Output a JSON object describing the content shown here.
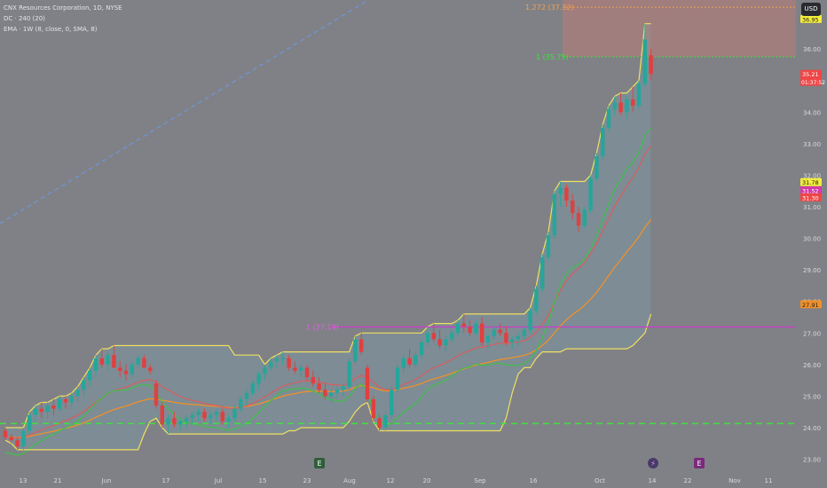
{
  "header": {
    "symbol_line": "CNX Resources Corporation, 1D, NYSE",
    "indicator_1": "DC · 240 (20)",
    "indicator_2": "EMA · 1W (8, close, 0, SMA, 8)"
  },
  "currency_button": "USD",
  "colors": {
    "background": "#808186",
    "up_candle": "#26a69a",
    "down_candle": "#e0403f",
    "donchian_band": "#f0e060",
    "ema_red": "#e05a5a",
    "ema_green": "#3fc14a",
    "ema_orange": "#f0902a",
    "resistance_line": "#cc3ccc",
    "support_line": "#3fe03f",
    "trend_line": "#6d95d8",
    "fib_line": "#f0a050",
    "target_line": "#3fe03f"
  },
  "chart_data": {
    "type": "candlestick",
    "x_tick_labels": [
      "13",
      "21",
      "Jun",
      "17",
      "Jul",
      "15",
      "23",
      "Aug",
      "12",
      "20",
      "Sep",
      "16",
      "Oct",
      "14",
      "22",
      "Nov",
      "11"
    ],
    "y_tick_labels": [
      "23.00",
      "24.00",
      "25.00",
      "26.00",
      "27.00",
      "28.00",
      "29.00",
      "30.00",
      "31.00",
      "32.00",
      "33.00",
      "34.00",
      "35.00",
      "36.00"
    ],
    "ylim": [
      22.65,
      37.55
    ],
    "price_labels": [
      {
        "value": 36.95,
        "text": "36.95",
        "bg": "#f2ec3c",
        "fg": "#1f1f1f"
      },
      {
        "value": 35.21,
        "text": "35.21",
        "sub": "01:37:52",
        "bg": "#ef4646",
        "fg": "#ffffff"
      },
      {
        "value": 31.78,
        "text": "31.78",
        "bg": "#f2ec3c",
        "fg": "#1f1f1f"
      },
      {
        "value": 31.52,
        "text": "31.52",
        "bg": "#d23aa8",
        "fg": "#ffffff"
      },
      {
        "value": 31.3,
        "text": "31.30",
        "bg": "#ef4646",
        "fg": "#ffffff"
      },
      {
        "value": 27.91,
        "text": "27.91",
        "bg": "#f0902a",
        "fg": "#1f1f1f"
      }
    ],
    "annotations": [
      {
        "text": "1.272 (37.32)",
        "value": 37.32
      },
      {
        "text": "1 (35.75)",
        "value": 35.75
      },
      {
        "text": "1 (27.19)",
        "value": 27.19
      }
    ],
    "levels": {
      "fib_1272": 37.32,
      "target": 35.75,
      "resistance": 27.19,
      "support": 24.13
    },
    "event_markers": [
      "E",
      "⚡",
      "E"
    ],
    "candles": [
      [
        23.9,
        24.0,
        23.6,
        23.7
      ],
      [
        23.7,
        23.8,
        23.5,
        23.6
      ],
      [
        23.6,
        23.7,
        23.3,
        23.4
      ],
      [
        23.4,
        24.0,
        23.3,
        23.9
      ],
      [
        23.9,
        24.5,
        23.8,
        24.4
      ],
      [
        24.4,
        24.7,
        24.2,
        24.6
      ],
      [
        24.6,
        24.8,
        24.3,
        24.5
      ],
      [
        24.5,
        24.8,
        24.3,
        24.7
      ],
      [
        24.7,
        24.9,
        24.4,
        24.6
      ],
      [
        24.6,
        25.0,
        24.5,
        24.9
      ],
      [
        24.9,
        25.0,
        24.6,
        24.8
      ],
      [
        24.8,
        25.1,
        24.6,
        25.0
      ],
      [
        25.0,
        25.3,
        24.8,
        25.2
      ],
      [
        25.2,
        25.6,
        25.0,
        25.5
      ],
      [
        25.5,
        25.9,
        25.3,
        25.8
      ],
      [
        25.8,
        26.3,
        25.6,
        26.2
      ],
      [
        26.2,
        26.5,
        25.9,
        26.0
      ],
      [
        26.0,
        26.4,
        25.8,
        26.3
      ],
      [
        26.3,
        26.6,
        26.0,
        25.9
      ],
      [
        25.9,
        26.1,
        25.6,
        25.8
      ],
      [
        25.8,
        26.0,
        25.5,
        25.7
      ],
      [
        25.7,
        26.1,
        25.6,
        26.0
      ],
      [
        26.0,
        26.3,
        25.9,
        26.2
      ],
      [
        26.2,
        26.3,
        25.9,
        25.9
      ],
      [
        25.9,
        26.0,
        25.7,
        25.8
      ],
      [
        25.4,
        25.5,
        24.6,
        24.7
      ],
      [
        24.7,
        24.8,
        24.0,
        24.1
      ],
      [
        24.1,
        24.4,
        23.8,
        24.3
      ],
      [
        24.3,
        24.5,
        24.0,
        24.1
      ],
      [
        24.1,
        24.3,
        23.9,
        24.2
      ],
      [
        24.2,
        24.4,
        24.0,
        24.3
      ],
      [
        24.3,
        24.5,
        24.1,
        24.4
      ],
      [
        24.4,
        24.6,
        24.2,
        24.5
      ],
      [
        24.5,
        24.6,
        24.2,
        24.3
      ],
      [
        24.3,
        24.5,
        24.1,
        24.4
      ],
      [
        24.4,
        24.6,
        24.2,
        24.5
      ],
      [
        24.5,
        24.6,
        24.1,
        24.2
      ],
      [
        24.2,
        24.4,
        24.0,
        24.3
      ],
      [
        24.3,
        24.7,
        24.2,
        24.6
      ],
      [
        24.6,
        25.0,
        24.5,
        24.9
      ],
      [
        24.9,
        25.2,
        24.7,
        25.1
      ],
      [
        25.1,
        25.5,
        25.0,
        25.4
      ],
      [
        25.4,
        25.8,
        25.2,
        25.7
      ],
      [
        25.7,
        26.0,
        25.5,
        25.9
      ],
      [
        25.9,
        26.2,
        25.8,
        26.1
      ],
      [
        26.1,
        26.3,
        25.9,
        26.2
      ],
      [
        26.2,
        26.4,
        26.0,
        26.2
      ],
      [
        26.2,
        26.3,
        25.8,
        25.9
      ],
      [
        25.9,
        26.1,
        25.7,
        25.8
      ],
      [
        25.8,
        26.0,
        25.6,
        25.9
      ],
      [
        25.9,
        26.0,
        25.5,
        25.6
      ],
      [
        25.6,
        25.8,
        25.3,
        25.4
      ],
      [
        25.4,
        25.6,
        25.1,
        25.2
      ],
      [
        25.2,
        25.4,
        24.9,
        25.0
      ],
      [
        25.0,
        25.2,
        24.8,
        25.1
      ],
      [
        25.1,
        25.3,
        24.9,
        25.2
      ],
      [
        25.2,
        25.4,
        25.0,
        25.3
      ],
      [
        25.3,
        26.2,
        25.2,
        26.1
      ],
      [
        26.1,
        26.9,
        26.0,
        26.8
      ],
      [
        26.8,
        27.0,
        26.3,
        26.4
      ],
      [
        25.9,
        26.0,
        24.8,
        24.9
      ],
      [
        24.9,
        25.0,
        24.2,
        24.3
      ],
      [
        24.3,
        24.4,
        23.9,
        24.0
      ],
      [
        24.0,
        24.5,
        23.9,
        24.4
      ],
      [
        24.4,
        25.3,
        24.3,
        25.2
      ],
      [
        25.2,
        26.0,
        25.1,
        25.9
      ],
      [
        25.9,
        26.3,
        25.7,
        26.2
      ],
      [
        26.2,
        26.5,
        25.9,
        26.0
      ],
      [
        26.0,
        26.4,
        25.9,
        26.3
      ],
      [
        26.3,
        26.8,
        26.2,
        26.7
      ],
      [
        26.7,
        27.2,
        26.6,
        27.0
      ],
      [
        27.0,
        27.3,
        26.7,
        26.8
      ],
      [
        26.8,
        27.1,
        26.5,
        26.6
      ],
      [
        26.6,
        26.9,
        26.4,
        26.8
      ],
      [
        26.8,
        27.1,
        26.7,
        27.0
      ],
      [
        27.0,
        27.4,
        26.9,
        27.3
      ],
      [
        27.3,
        27.6,
        27.0,
        27.2
      ],
      [
        27.2,
        27.4,
        26.9,
        27.0
      ],
      [
        27.0,
        27.4,
        26.9,
        27.3
      ],
      [
        27.3,
        27.5,
        26.6,
        26.7
      ],
      [
        26.7,
        27.0,
        26.5,
        26.9
      ],
      [
        26.9,
        27.2,
        26.8,
        27.1
      ],
      [
        27.1,
        27.3,
        26.9,
        27.0
      ],
      [
        27.0,
        27.2,
        26.6,
        26.7
      ],
      [
        26.7,
        26.9,
        26.5,
        26.8
      ],
      [
        26.8,
        27.0,
        26.6,
        26.9
      ],
      [
        26.9,
        27.2,
        26.8,
        27.1
      ],
      [
        27.1,
        27.8,
        27.0,
        27.7
      ],
      [
        27.7,
        28.5,
        27.6,
        28.4
      ],
      [
        28.4,
        29.5,
        28.3,
        29.4
      ],
      [
        29.4,
        30.2,
        29.3,
        30.1
      ],
      [
        30.1,
        31.5,
        30.0,
        31.4
      ],
      [
        31.4,
        31.8,
        31.0,
        31.6
      ],
      [
        31.6,
        31.7,
        31.0,
        31.2
      ],
      [
        31.2,
        31.4,
        30.6,
        30.8
      ],
      [
        30.8,
        31.0,
        30.2,
        30.4
      ],
      [
        30.4,
        31.0,
        30.3,
        30.9
      ],
      [
        30.9,
        32.0,
        30.8,
        31.9
      ],
      [
        31.9,
        32.7,
        31.8,
        32.6
      ],
      [
        32.6,
        33.6,
        32.5,
        33.5
      ],
      [
        33.5,
        34.2,
        33.4,
        34.1
      ],
      [
        34.1,
        34.5,
        33.9,
        34.3
      ],
      [
        34.3,
        34.6,
        33.9,
        34.0
      ],
      [
        34.0,
        34.5,
        33.8,
        34.4
      ],
      [
        34.4,
        34.8,
        34.0,
        34.2
      ],
      [
        34.2,
        35.0,
        34.1,
        34.9
      ],
      [
        34.9,
        36.8,
        34.8,
        36.3
      ],
      [
        35.8,
        36.0,
        35.0,
        35.21
      ]
    ]
  }
}
